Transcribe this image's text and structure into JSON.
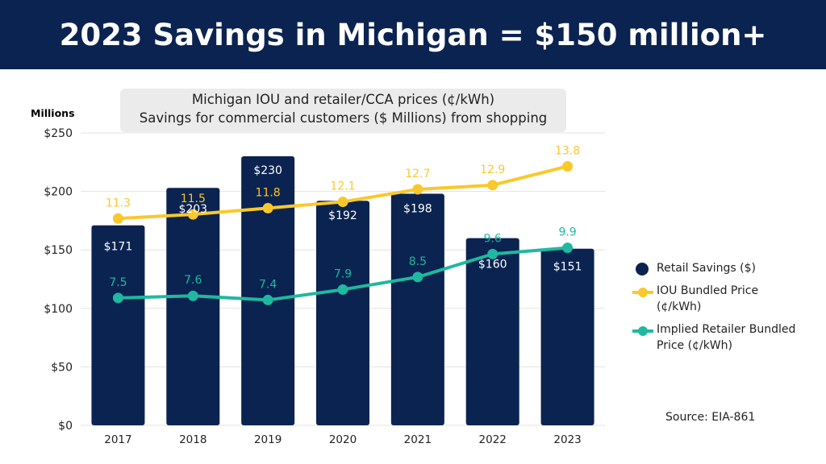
{
  "banner": {
    "title": "2023 Savings in Michigan = $150 million+"
  },
  "subtitle": {
    "line1": "Michigan IOU and retailer/CCA prices (¢/kWh)",
    "line2": "Savings for commercial customers ($ Millions) from shopping"
  },
  "source": "Source: EIA-861",
  "chart_data": {
    "type": "bar",
    "title": "Michigan IOU and retailer/CCA prices (¢/kWh) / Savings for commercial customers ($ Millions) from shopping",
    "ylabel": "Millions",
    "ylim": [
      0,
      250
    ],
    "y_ticks": [
      "$0",
      "$50",
      "$100",
      "$150",
      "$200",
      "$250"
    ],
    "y_tick_values": [
      0,
      50,
      100,
      150,
      200,
      250
    ],
    "y2lim": [
      1.4,
      15.4
    ],
    "categories": [
      "2017",
      "2018",
      "2019",
      "2020",
      "2021",
      "2022",
      "2023"
    ],
    "grid": true,
    "legend_position": "right",
    "series": [
      {
        "name": "Retail Savings ($)",
        "type": "bar",
        "color": "#0b2350",
        "values": [
          171,
          203,
          230,
          192,
          198,
          160,
          151
        ],
        "labels": [
          "$171",
          "$203",
          "$230",
          "$192",
          "$198",
          "$160",
          "$151"
        ]
      },
      {
        "name": "IOU Bundled Price (¢/kWh)",
        "type": "line",
        "axis": "secondary",
        "color": "#f9c82b",
        "values": [
          11.3,
          11.5,
          11.8,
          12.1,
          12.7,
          12.9,
          13.8
        ],
        "labels": [
          "11.3",
          "11.5",
          "11.8",
          "12.1",
          "12.7",
          "12.9",
          "13.8"
        ]
      },
      {
        "name": "Implied Retailer Bundled Price (¢/kWh)",
        "type": "line",
        "axis": "secondary",
        "color": "#1fb8a0",
        "values": [
          7.5,
          7.6,
          7.4,
          7.9,
          8.5,
          9.6,
          9.9
        ],
        "labels": [
          "7.5",
          "7.6",
          "7.4",
          "7.9",
          "8.5",
          "9.6",
          "9.9"
        ]
      }
    ]
  }
}
